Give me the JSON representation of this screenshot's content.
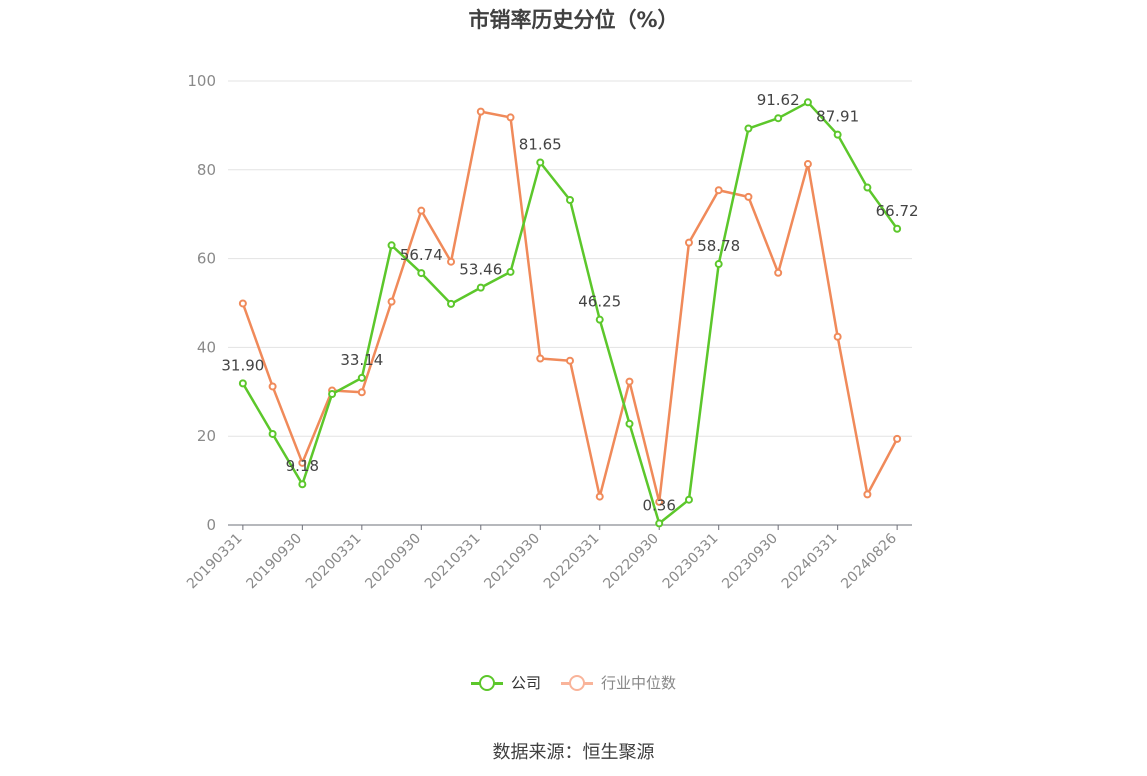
{
  "title": "市销率历史分位（%）",
  "source": "数据来源：恒生聚源",
  "chart_data": {
    "type": "line",
    "title": "市销率历史分位（%）",
    "ylim": [
      0,
      100
    ],
    "y_ticks": [
      0,
      20,
      40,
      60,
      80,
      100
    ],
    "grid": true,
    "legend_position": "bottom",
    "x": [
      "20190331",
      "20190630",
      "20190930",
      "20191231",
      "20200331",
      "20200630",
      "20200930",
      "20201231",
      "20210331",
      "20210630",
      "20210930",
      "20211231",
      "20220331",
      "20220630",
      "20220930",
      "20221231",
      "20230331",
      "20230630",
      "20230930",
      "20231231",
      "20240331",
      "20240630",
      "20240826"
    ],
    "x_tick_labels": [
      "20190331",
      "20190930",
      "20200331",
      "20200930",
      "20210331",
      "20210930",
      "20220331",
      "20220930",
      "20230331",
      "20230930",
      "20240331",
      "20240826"
    ],
    "series": [
      {
        "name": "公司",
        "color": "#5cc72b",
        "values": [
          31.9,
          20.5,
          9.18,
          29.5,
          33.14,
          63.0,
          56.74,
          49.8,
          53.46,
          57.0,
          81.65,
          73.2,
          46.25,
          22.8,
          0.36,
          5.7,
          58.78,
          89.3,
          91.62,
          95.2,
          87.91,
          76.0,
          66.72
        ],
        "labels": [
          "31.90",
          "",
          "9.18",
          "",
          "33.14",
          "",
          "56.74",
          "",
          "53.46",
          "",
          "81.65",
          "",
          "46.25",
          "",
          "0.36",
          "",
          "58.78",
          "",
          "91.62",
          "",
          "87.91",
          "",
          "66.72"
        ]
      },
      {
        "name": "行业中位数",
        "color": "#f08a5a",
        "values": [
          49.9,
          31.2,
          14.0,
          30.3,
          29.9,
          50.3,
          70.8,
          59.3,
          93.1,
          91.8,
          37.5,
          37.0,
          6.4,
          32.3,
          5.2,
          63.6,
          75.4,
          73.9,
          56.8,
          81.3,
          42.4,
          6.9,
          19.4
        ]
      }
    ]
  },
  "legend": [
    {
      "label": "公司",
      "color": "#5cc72b",
      "text_color": "#333333"
    },
    {
      "label": "行业中位数",
      "color": "#f9b49a",
      "text_color": "#888888"
    }
  ]
}
